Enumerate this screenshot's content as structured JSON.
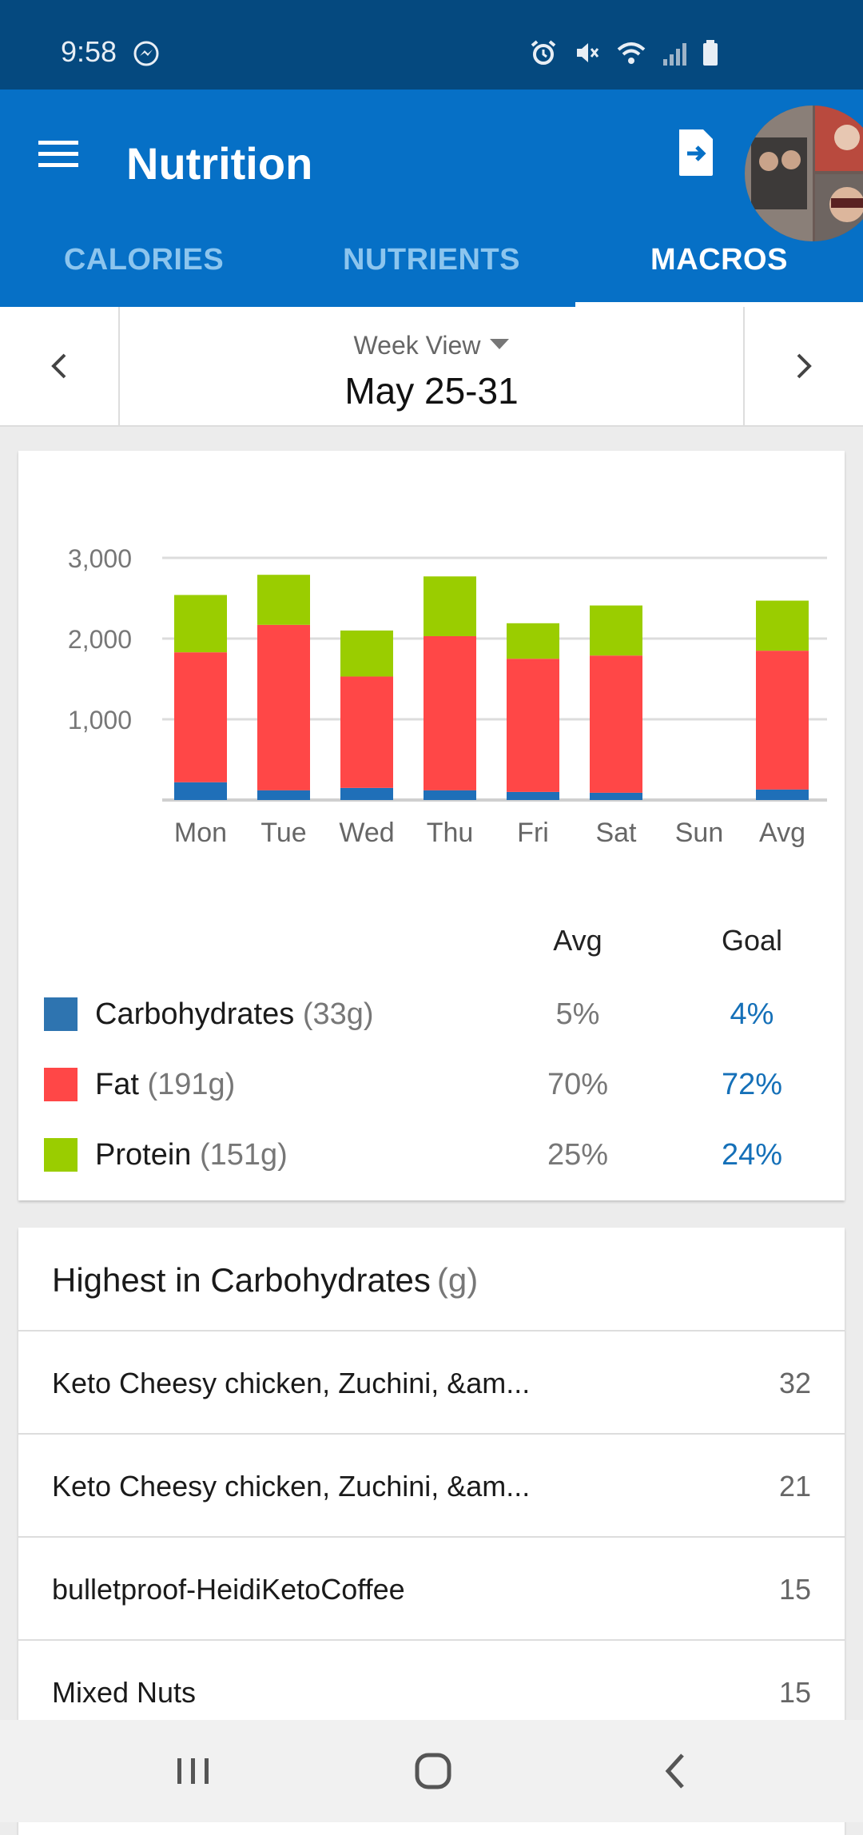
{
  "status": {
    "time": "9:58"
  },
  "app_bar": {
    "title": "Nutrition"
  },
  "tabs": [
    {
      "label": "CALORIES"
    },
    {
      "label": "NUTRIENTS"
    },
    {
      "label": "MACROS"
    }
  ],
  "date_selector": {
    "view_label": "Week View",
    "range": "May 25-31"
  },
  "chart_data": {
    "type": "bar",
    "stacked": true,
    "categories": [
      "Mon",
      "Tue",
      "Wed",
      "Thu",
      "Fri",
      "Sat",
      "Sun",
      "Avg"
    ],
    "series": [
      {
        "name": "Carbohydrates",
        "color": "#1f6fb8",
        "values": [
          220,
          120,
          150,
          120,
          100,
          90,
          0,
          130
        ]
      },
      {
        "name": "Fat",
        "color": "#ff4747",
        "values": [
          1610,
          2050,
          1380,
          1910,
          1650,
          1700,
          0,
          1720
        ]
      },
      {
        "name": "Protein",
        "color": "#9acd00",
        "values": [
          710,
          620,
          570,
          740,
          440,
          620,
          0,
          620
        ]
      }
    ],
    "y_ticks": [
      "3,000",
      "2,000",
      "1,000"
    ],
    "ylim": [
      0,
      3000
    ],
    "grid": true
  },
  "macro_legend": {
    "avg_header": "Avg",
    "goal_header": "Goal",
    "rows": [
      {
        "name": "Carbohydrates",
        "grams": "(33g)",
        "avg": "5%",
        "goal": "4%",
        "color": "#2e74b0"
      },
      {
        "name": "Fat",
        "grams": "(191g)",
        "avg": "70%",
        "goal": "72%",
        "color": "#ff4747"
      },
      {
        "name": "Protein",
        "grams": "(151g)",
        "avg": "25%",
        "goal": "24%",
        "color": "#9acd00"
      }
    ]
  },
  "highest_list": {
    "title": "Highest in Carbohydrates",
    "unit": "(g)",
    "items": [
      {
        "name": "Keto Cheesy chicken, Zuchini, &am...",
        "value": "32"
      },
      {
        "name": "Keto Cheesy chicken, Zuchini, &am...",
        "value": "21"
      },
      {
        "name": "bulletproof-HeidiKetoCoffee",
        "value": "15"
      },
      {
        "name": "Mixed Nuts",
        "value": "15"
      }
    ]
  },
  "colors": {
    "status_bar": "#05497f",
    "app_bar": "#0670c6",
    "goal_text": "#1570b8"
  }
}
